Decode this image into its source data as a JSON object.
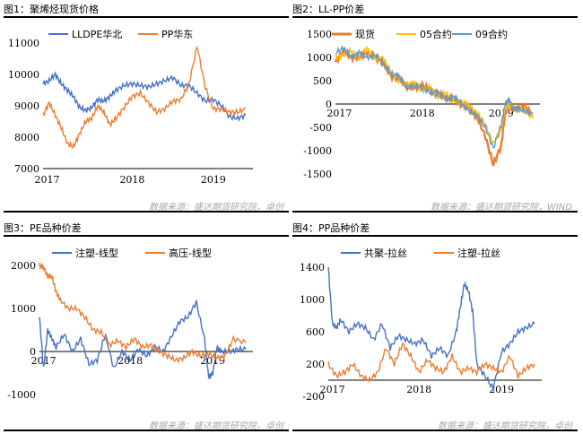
{
  "chart_data": [
    {
      "type": "line",
      "title": "图1：聚烯烃现货价格",
      "ylim": [
        7000,
        11000
      ],
      "yticks": [
        "11000",
        "10000",
        "9000",
        "8000",
        "7000"
      ],
      "xticks": [
        "2017",
        "2018",
        "2019"
      ],
      "source": "数据来源：盛达期货研究院，卓创",
      "series": [
        {
          "name": "LLDPE华北",
          "color": "#4472c4",
          "x": [
            0,
            0.03,
            0.06,
            0.09,
            0.12,
            0.15,
            0.18,
            0.21,
            0.24,
            0.27,
            0.3,
            0.33,
            0.36,
            0.4,
            0.44,
            0.48,
            0.52,
            0.56,
            0.6,
            0.64,
            0.68,
            0.72,
            0.76,
            0.8,
            0.84,
            0.88,
            0.92,
            0.96,
            1.0
          ],
          "y": [
            9700,
            9800,
            10000,
            9700,
            9500,
            9300,
            8950,
            8850,
            8950,
            9200,
            9150,
            9300,
            9500,
            9650,
            9700,
            9650,
            9600,
            9700,
            9800,
            9900,
            9650,
            9650,
            9400,
            9150,
            9200,
            9000,
            8650,
            8600,
            8700
          ]
        },
        {
          "name": "PP华东",
          "color": "#ed7d31",
          "x": [
            0,
            0.03,
            0.06,
            0.09,
            0.12,
            0.15,
            0.18,
            0.21,
            0.24,
            0.27,
            0.3,
            0.33,
            0.36,
            0.4,
            0.44,
            0.48,
            0.52,
            0.56,
            0.6,
            0.64,
            0.68,
            0.72,
            0.76,
            0.8,
            0.84,
            0.88,
            0.92,
            0.96,
            1.0
          ],
          "y": [
            8700,
            9100,
            8700,
            8300,
            7800,
            7700,
            8100,
            8500,
            8600,
            9000,
            8800,
            8400,
            8600,
            8950,
            9300,
            9400,
            9100,
            8800,
            8900,
            9150,
            9200,
            9700,
            10900,
            9600,
            8900,
            8900,
            8800,
            8800,
            8900
          ]
        }
      ]
    },
    {
      "type": "line",
      "title": "图2：LL-PP价差",
      "ylim": [
        -1500,
        1500
      ],
      "yticks": [
        "1500",
        "1000",
        "500",
        "0",
        "-500",
        "-1000",
        "-1500"
      ],
      "xticks": [
        "2017",
        "2018",
        "2019"
      ],
      "source": "数据来源：盛达期货研究院，WIND",
      "series": [
        {
          "name": "现货",
          "color": "#ed7d31",
          "x": [
            0,
            0.04,
            0.08,
            0.12,
            0.16,
            0.2,
            0.24,
            0.28,
            0.32,
            0.36,
            0.4,
            0.44,
            0.48,
            0.52,
            0.56,
            0.6,
            0.64,
            0.68,
            0.72,
            0.76,
            0.8,
            0.84,
            0.86,
            0.88,
            0.9,
            0.92,
            0.96,
            1.0
          ],
          "y": [
            900,
            1150,
            1000,
            1000,
            1100,
            1000,
            900,
            600,
            550,
            400,
            350,
            400,
            300,
            200,
            150,
            100,
            0,
            -100,
            -300,
            -700,
            -1300,
            -900,
            -200,
            0,
            -100,
            -100,
            -50,
            -250
          ]
        },
        {
          "name": "05合约",
          "color": "#ffc000",
          "x": [
            0,
            0.04,
            0.08,
            0.12,
            0.16,
            0.2,
            0.24,
            0.28,
            0.32,
            0.36,
            0.4,
            0.44,
            0.48,
            0.52,
            0.56,
            0.6,
            0.64,
            0.68,
            0.72,
            0.76,
            0.8,
            0.84,
            0.86,
            0.88,
            0.9,
            0.92,
            0.96,
            1.0
          ],
          "y": [
            1000,
            1050,
            1150,
            1000,
            1200,
            950,
            1000,
            700,
            500,
            400,
            450,
            300,
            350,
            150,
            250,
            50,
            50,
            -50,
            -200,
            -450,
            -850,
            -550,
            -100,
            0,
            -50,
            -150,
            -100,
            -300
          ]
        },
        {
          "name": "09合约",
          "color": "#5b9bd5",
          "x": [
            0,
            0.04,
            0.08,
            0.12,
            0.16,
            0.2,
            0.24,
            0.28,
            0.32,
            0.36,
            0.4,
            0.44,
            0.48,
            0.52,
            0.56,
            0.6,
            0.64,
            0.68,
            0.72,
            0.76,
            0.8,
            0.84,
            0.86,
            0.88,
            0.9,
            0.92,
            0.96,
            1.0
          ],
          "y": [
            1100,
            1200,
            1000,
            1100,
            1000,
            1050,
            900,
            650,
            600,
            350,
            400,
            350,
            250,
            250,
            100,
            150,
            0,
            -150,
            -250,
            -500,
            -950,
            -450,
            0,
            100,
            -100,
            -100,
            -150,
            -200
          ]
        }
      ]
    },
    {
      "type": "line",
      "title": "图3：PE品种价差",
      "ylim": [
        -1000,
        2000
      ],
      "yticks": [
        "2000",
        "1000",
        "0",
        "-1000"
      ],
      "xticks": [
        "2017",
        "2018",
        "2019"
      ],
      "source": "数据来源：盛达期货研究院，卓创",
      "series": [
        {
          "name": "注塑-线型",
          "color": "#4472c4",
          "x": [
            0,
            0.02,
            0.04,
            0.06,
            0.08,
            0.12,
            0.16,
            0.2,
            0.24,
            0.28,
            0.32,
            0.36,
            0.4,
            0.44,
            0.48,
            0.52,
            0.56,
            0.6,
            0.64,
            0.68,
            0.72,
            0.76,
            0.8,
            0.82,
            0.84,
            0.86,
            0.88,
            0.92,
            0.96,
            1.0
          ],
          "y": [
            800,
            -400,
            500,
            300,
            100,
            400,
            0,
            300,
            -300,
            -200,
            400,
            -400,
            0,
            -200,
            50,
            -100,
            100,
            0,
            350,
            700,
            800,
            1150,
            300,
            -600,
            -500,
            100,
            0,
            0,
            50,
            50
          ]
        },
        {
          "name": "高压-线型",
          "color": "#ed7d31",
          "x": [
            0,
            0.02,
            0.04,
            0.06,
            0.08,
            0.1,
            0.14,
            0.18,
            0.22,
            0.26,
            0.3,
            0.34,
            0.38,
            0.42,
            0.46,
            0.5,
            0.54,
            0.58,
            0.62,
            0.66,
            0.7,
            0.74,
            0.78,
            0.82,
            0.86,
            0.9,
            0.94,
            1.0
          ],
          "y": [
            2000,
            1950,
            1750,
            1750,
            1400,
            1200,
            1000,
            1000,
            800,
            500,
            450,
            150,
            250,
            100,
            300,
            100,
            150,
            0,
            -100,
            -200,
            -150,
            0,
            -100,
            -50,
            -150,
            -100,
            300,
            200
          ]
        }
      ]
    },
    {
      "type": "line",
      "title": "图4：PP品种价差",
      "ylim": [
        -200,
        1400
      ],
      "yticks": [
        "1400",
        "1000",
        "600",
        "200",
        "-200"
      ],
      "xticks": [
        "2017",
        "2018",
        "2019"
      ],
      "source": "数据来源：盛达期货研究院，卓创",
      "series": [
        {
          "name": "共聚-拉丝",
          "color": "#4472c4",
          "x": [
            0,
            0.02,
            0.04,
            0.06,
            0.1,
            0.14,
            0.18,
            0.22,
            0.26,
            0.3,
            0.34,
            0.38,
            0.42,
            0.46,
            0.5,
            0.54,
            0.58,
            0.62,
            0.64,
            0.66,
            0.68,
            0.7,
            0.72,
            0.76,
            0.8,
            0.84,
            0.88,
            0.92,
            0.96,
            1.0
          ],
          "y": [
            1400,
            700,
            650,
            750,
            600,
            700,
            650,
            500,
            700,
            400,
            550,
            500,
            450,
            500,
            300,
            400,
            300,
            600,
            900,
            1200,
            1100,
            850,
            200,
            50,
            -100,
            350,
            450,
            600,
            650,
            700
          ]
        },
        {
          "name": "注塑-拉丝",
          "color": "#ed7d31",
          "x": [
            0,
            0.04,
            0.08,
            0.12,
            0.16,
            0.2,
            0.24,
            0.28,
            0.32,
            0.36,
            0.4,
            0.44,
            0.48,
            0.52,
            0.56,
            0.6,
            0.64,
            0.68,
            0.72,
            0.76,
            0.8,
            0.84,
            0.88,
            0.92,
            0.96,
            1.0
          ],
          "y": [
            200,
            50,
            100,
            200,
            50,
            0,
            100,
            400,
            200,
            450,
            300,
            100,
            250,
            150,
            100,
            300,
            100,
            150,
            100,
            200,
            150,
            100,
            300,
            50,
            150,
            200
          ]
        }
      ]
    }
  ]
}
